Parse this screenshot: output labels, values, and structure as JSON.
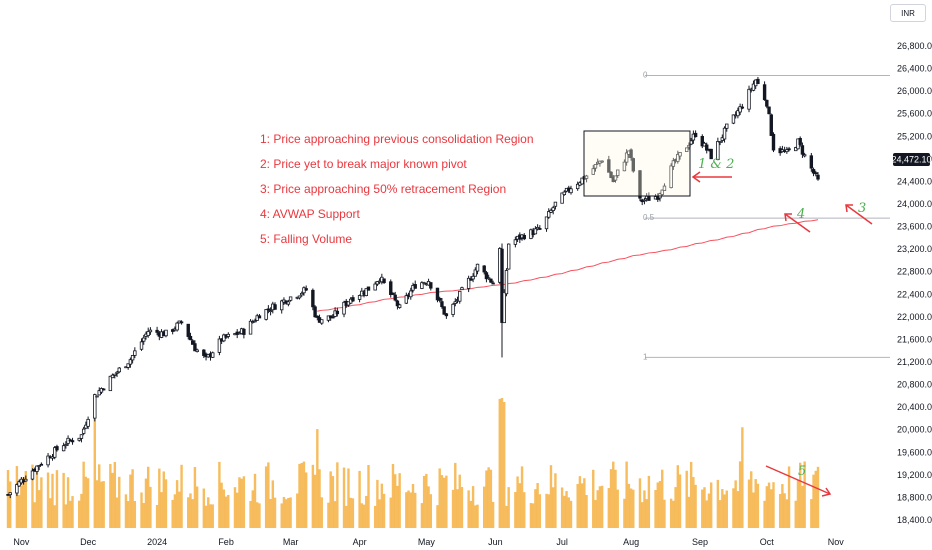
{
  "currency": "INR",
  "price_label": "24,472.10",
  "annotations": [
    "1: Price approaching previous consolidation Region",
    "2: Price yet to break major known pivot",
    "3: Price approaching 50% retracement Region",
    "4: AVWAP Support",
    "5: Falling Volume"
  ],
  "markers": {
    "m12": "1 & 2",
    "m3": "3",
    "m4": "4",
    "m5": "5"
  },
  "fib_levels": {
    "top": "0",
    "mid": "0.5",
    "bottom": "1"
  },
  "colors": {
    "up": "#ffffff",
    "down": "#131722",
    "avwap": "#f7525f",
    "volume": "#f5b041",
    "note": "#e8383f",
    "hand": "#4caf50"
  },
  "chart_data": {
    "type": "candlestick",
    "x_ticks": [
      "Nov",
      "Dec",
      "2024",
      "Feb",
      "Mar",
      "Apr",
      "May",
      "Jun",
      "Jul",
      "Aug",
      "Sep",
      "Oct",
      "Nov"
    ],
    "y_ticks": [
      "18,400.00",
      "18,800.00",
      "19,200.00",
      "19,600.00",
      "20,000.00",
      "20,400.00",
      "20,800.00",
      "21,200.00",
      "21,600.00",
      "22,000.00",
      "22,400.00",
      "22,800.00",
      "23,200.00",
      "23,600.00",
      "24,000.00",
      "24,400.00",
      "24,800.00",
      "25,200.00",
      "25,600.00",
      "26,000.00",
      "26,400.00",
      "26,800.00"
    ],
    "ylim": [
      18200,
      26900
    ],
    "last_price": 24472.1,
    "fib": {
      "level_0": 26277,
      "level_0_5": 23750,
      "level_1": 21281
    },
    "anchor_points": [
      [
        "2023-10-26",
        18850
      ],
      [
        "2023-11-02",
        19140
      ],
      [
        "2023-11-10",
        19420
      ],
      [
        "2023-11-20",
        19750
      ],
      [
        "2023-11-28",
        19900
      ],
      [
        "2023-12-04",
        20600
      ],
      [
        "2023-12-12",
        20950
      ],
      [
        "2023-12-20",
        21250
      ],
      [
        "2023-12-28",
        21750
      ],
      [
        "2024-01-05",
        21700
      ],
      [
        "2024-01-12",
        21900
      ],
      [
        "2024-01-18",
        21450
      ],
      [
        "2024-01-23",
        21240
      ],
      [
        "2024-01-30",
        21600
      ],
      [
        "2024-02-09",
        21750
      ],
      [
        "2024-02-16",
        22050
      ],
      [
        "2024-02-23",
        22200
      ],
      [
        "2024-03-01",
        22350
      ],
      [
        "2024-03-08",
        22480
      ],
      [
        "2024-03-13",
        21950
      ],
      [
        "2024-03-20",
        22000
      ],
      [
        "2024-03-28",
        22330
      ],
      [
        "2024-04-05",
        22500
      ],
      [
        "2024-04-10",
        22700
      ],
      [
        "2024-04-19",
        22150
      ],
      [
        "2024-04-26",
        22570
      ],
      [
        "2024-05-02",
        22650
      ],
      [
        "2024-05-10",
        22000
      ],
      [
        "2024-05-17",
        22450
      ],
      [
        "2024-05-24",
        22900
      ],
      [
        "2024-05-31",
        22600
      ],
      [
        "2024-06-03",
        23250
      ],
      [
        "2024-06-04",
        21900
      ],
      [
        "2024-06-07",
        23300
      ],
      [
        "2024-06-14",
        23450
      ],
      [
        "2024-06-21",
        23550
      ],
      [
        "2024-06-28",
        24000
      ],
      [
        "2024-07-05",
        24300
      ],
      [
        "2024-07-12",
        24500
      ],
      [
        "2024-07-19",
        24800
      ],
      [
        "2024-07-24",
        24400
      ],
      [
        "2024-07-31",
        24950
      ],
      [
        "2024-08-05",
        24050
      ],
      [
        "2024-08-13",
        24150
      ],
      [
        "2024-08-20",
        24700
      ],
      [
        "2024-08-30",
        25250
      ],
      [
        "2024-09-06",
        24850
      ],
      [
        "2024-09-13",
        25350
      ],
      [
        "2024-09-20",
        25750
      ],
      [
        "2024-09-26",
        26200
      ],
      [
        "2024-10-01",
        25800
      ],
      [
        "2024-10-04",
        25000
      ],
      [
        "2024-10-10",
        24900
      ],
      [
        "2024-10-15",
        25100
      ],
      [
        "2024-10-18",
        24850
      ],
      [
        "2024-10-24",
        24400
      ]
    ],
    "avwap_anchor": "2024-06-04",
    "avwap_end_value": 23720,
    "volume": "per-session bars, spikes near 2023-12-04, 2024-03-13, 2024-06-04 and 2024-09-20"
  }
}
